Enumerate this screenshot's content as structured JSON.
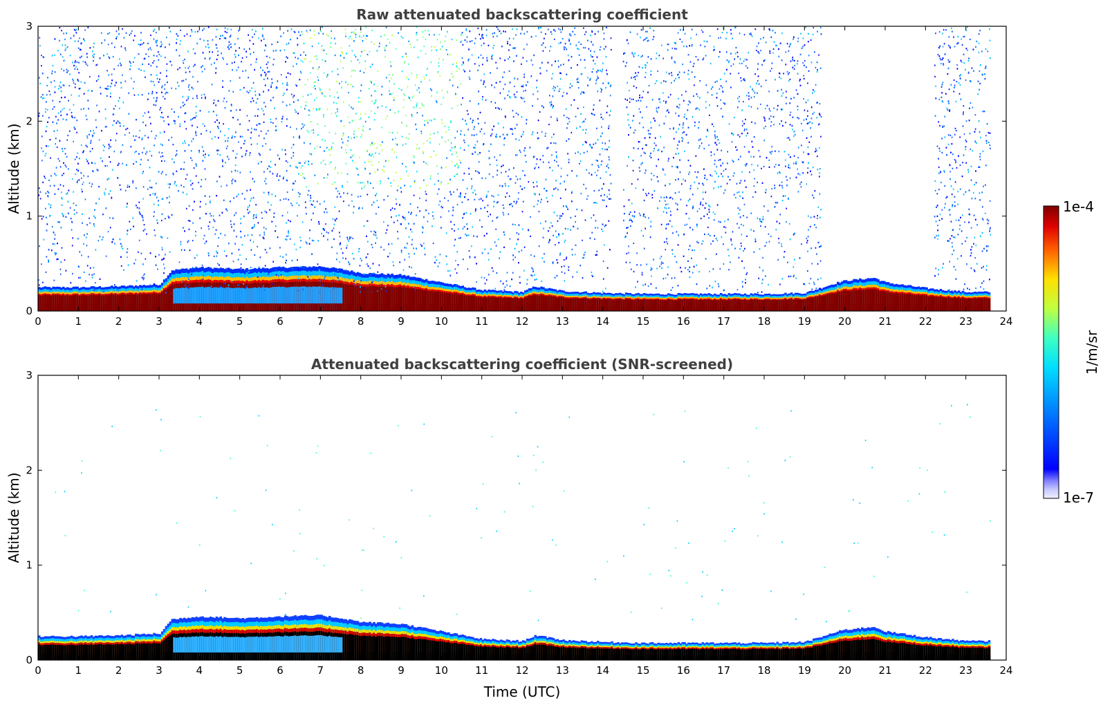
{
  "chart_data": [
    {
      "type": "heatmap",
      "title": "Raw attenuated backscattering coefficient",
      "xlabel": "",
      "ylabel": "Altitude (km)",
      "xlim": [
        0,
        24
      ],
      "ylim": [
        0,
        3
      ],
      "xticks": [
        "0",
        "1",
        "2",
        "3",
        "4",
        "5",
        "6",
        "7",
        "8",
        "9",
        "10",
        "11",
        "12",
        "13",
        "14",
        "15",
        "16",
        "17",
        "18",
        "19",
        "20",
        "21",
        "22",
        "23",
        "24"
      ],
      "yticks": [
        "0",
        "1",
        "2",
        "3"
      ],
      "data_end_hour": 23.6,
      "boundary_layer_top_km": {
        "hours": [
          0,
          1,
          2,
          3,
          3.3,
          4,
          5,
          6,
          7,
          7.5,
          8,
          9,
          10,
          11,
          12,
          12.3,
          13,
          14,
          15,
          16,
          17,
          18,
          19,
          19.8,
          20,
          20.7,
          21,
          22,
          23,
          23.6
        ],
        "values": [
          0.25,
          0.25,
          0.26,
          0.28,
          0.43,
          0.46,
          0.44,
          0.46,
          0.47,
          0.44,
          0.4,
          0.38,
          0.3,
          0.22,
          0.2,
          0.26,
          0.21,
          0.19,
          0.18,
          0.18,
          0.18,
          0.18,
          0.19,
          0.3,
          0.32,
          0.35,
          0.3,
          0.24,
          0.2,
          0.2
        ]
      },
      "noise_region": "0-3 km, strongest 7-10 h, absent 19.4-22.2 h"
    },
    {
      "type": "heatmap",
      "title": "Attenuated backscattering coefficient (SNR-screened)",
      "xlabel": "Time (UTC)",
      "ylabel": "Altitude (km)",
      "xlim": [
        0,
        24
      ],
      "ylim": [
        0,
        3
      ],
      "xticks": [
        "0",
        "1",
        "2",
        "3",
        "4",
        "5",
        "6",
        "7",
        "8",
        "9",
        "10",
        "11",
        "12",
        "13",
        "14",
        "15",
        "16",
        "17",
        "18",
        "19",
        "20",
        "21",
        "22",
        "23",
        "24"
      ],
      "yticks": [
        "0",
        "1",
        "2",
        "3"
      ],
      "data_end_hour": 23.6,
      "boundary_layer_top_km": {
        "hours": [
          0,
          1,
          2,
          3,
          3.3,
          4,
          5,
          6,
          7,
          7.5,
          8,
          9,
          10,
          11,
          12,
          12.3,
          13,
          14,
          15,
          16,
          17,
          18,
          19,
          19.8,
          20,
          20.7,
          21,
          22,
          23,
          23.6
        ],
        "values": [
          0.25,
          0.25,
          0.26,
          0.28,
          0.43,
          0.46,
          0.44,
          0.46,
          0.47,
          0.44,
          0.4,
          0.38,
          0.3,
          0.22,
          0.2,
          0.26,
          0.21,
          0.19,
          0.18,
          0.18,
          0.18,
          0.18,
          0.19,
          0.3,
          0.32,
          0.35,
          0.3,
          0.24,
          0.2,
          0.2
        ]
      },
      "noise_region": "sparse isolated pixels only"
    }
  ],
  "colorbar": {
    "max_label": "1e-4",
    "min_label": "1e-7",
    "unit_label": "1/m/sr",
    "colormap": "jet",
    "under_colors": [
      "#f0f0ff",
      "#c8c8ff",
      "#a0a0ff",
      "#7878ff",
      "#5050ff"
    ]
  }
}
